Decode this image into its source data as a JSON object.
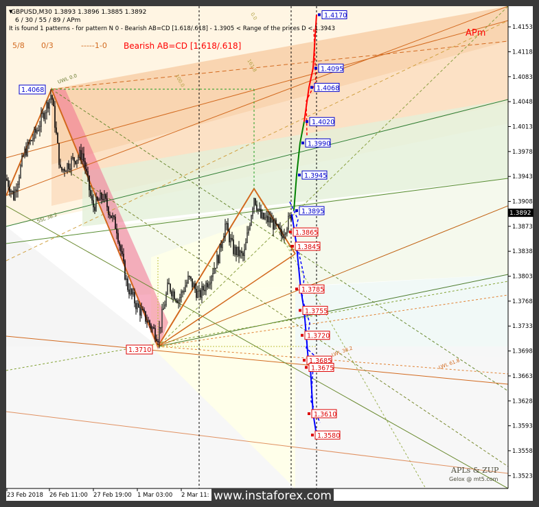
{
  "header": {
    "symbol_line": "GBPUSD,M30  1.3893 1.3896 1.3885 1.3892",
    "params_line": "6 / 30 / 55 / 89 / APm",
    "pattern_line": "It is found 1 patterns  -  for pattern N 0 - Bearish AB=CD [1.618/.618] - 1.3905 < Range of the prices D < 1.3943"
  },
  "overlay_labels": {
    "fib_5_8": "5/8",
    "fib_0_3": "0/3",
    "fib_1_0": "-----1-0",
    "pattern_title": "Bearish AB=CD [1.618/.618]",
    "apm": "APm",
    "credit_title": "APLs & ZUP",
    "credit_sub": "Gelox @ mt5.com",
    "watermark": "www.instaforex.com"
  },
  "colors": {
    "background": "#ffffff",
    "frame": "#3a3a3a",
    "candles": "#000000",
    "up_target": "#ff0000",
    "down_target": "#0000ff",
    "green_leg": "#008000",
    "orange_lines": "#d2691e",
    "blue_box_text": "#0000cc",
    "red_box_text": "#dd0000"
  },
  "chart_data": {
    "type": "candlestick",
    "symbol": "GBPUSD",
    "timeframe": "M30",
    "last_price": 1.3892,
    "ylim": [
      1.3505,
      1.4182
    ],
    "y_ticks": [
      "1.4153",
      "1.4118",
      "1.4083",
      "1.4048",
      "1.4013",
      "1.3978",
      "1.3943",
      "1.3908",
      "1.3873",
      "1.3838",
      "1.3803",
      "1.3768",
      "1.3733",
      "1.3698",
      "1.3663",
      "1.3628",
      "1.3593",
      "1.3558",
      "1.3523"
    ],
    "x_ticks": [
      "23 Feb 2018",
      "26 Feb 11:00",
      "27 Feb 19:00",
      "1 Mar 03:00",
      "2 Mar 11:"
    ],
    "pivots": [
      {
        "label": "1.4068",
        "value": 1.4068
      },
      {
        "label": "1.3710",
        "value": 1.371
      }
    ],
    "up_targets": [
      {
        "label": "1.4170",
        "value": 1.417
      },
      {
        "label": "1.4095",
        "value": 1.4095
      },
      {
        "label": "1.4068",
        "value": 1.4068
      },
      {
        "label": "1.4020",
        "value": 1.402
      },
      {
        "label": "1.3990",
        "value": 1.399
      },
      {
        "label": "1.3945",
        "value": 1.3945
      },
      {
        "label": "1.3895",
        "value": 1.3895
      }
    ],
    "down_targets": [
      {
        "label": "1.3865",
        "value": 1.3865
      },
      {
        "label": "1.3845",
        "value": 1.3845
      },
      {
        "label": "1.3785",
        "value": 1.3785
      },
      {
        "label": "1.3755",
        "value": 1.3755
      },
      {
        "label": "1.3720",
        "value": 1.372
      },
      {
        "label": "1.3685",
        "value": 1.3685
      },
      {
        "label": "1.3675",
        "value": 1.3675
      },
      {
        "label": "1.3610",
        "value": 1.361
      },
      {
        "label": "1.3580",
        "value": 1.358
      }
    ],
    "line_labels": [
      "LWL 38.2",
      "LWL 61.8",
      "SSL 38.2",
      "UWL 0.0",
      "0.0",
      "100.0",
      "161.8"
    ]
  }
}
